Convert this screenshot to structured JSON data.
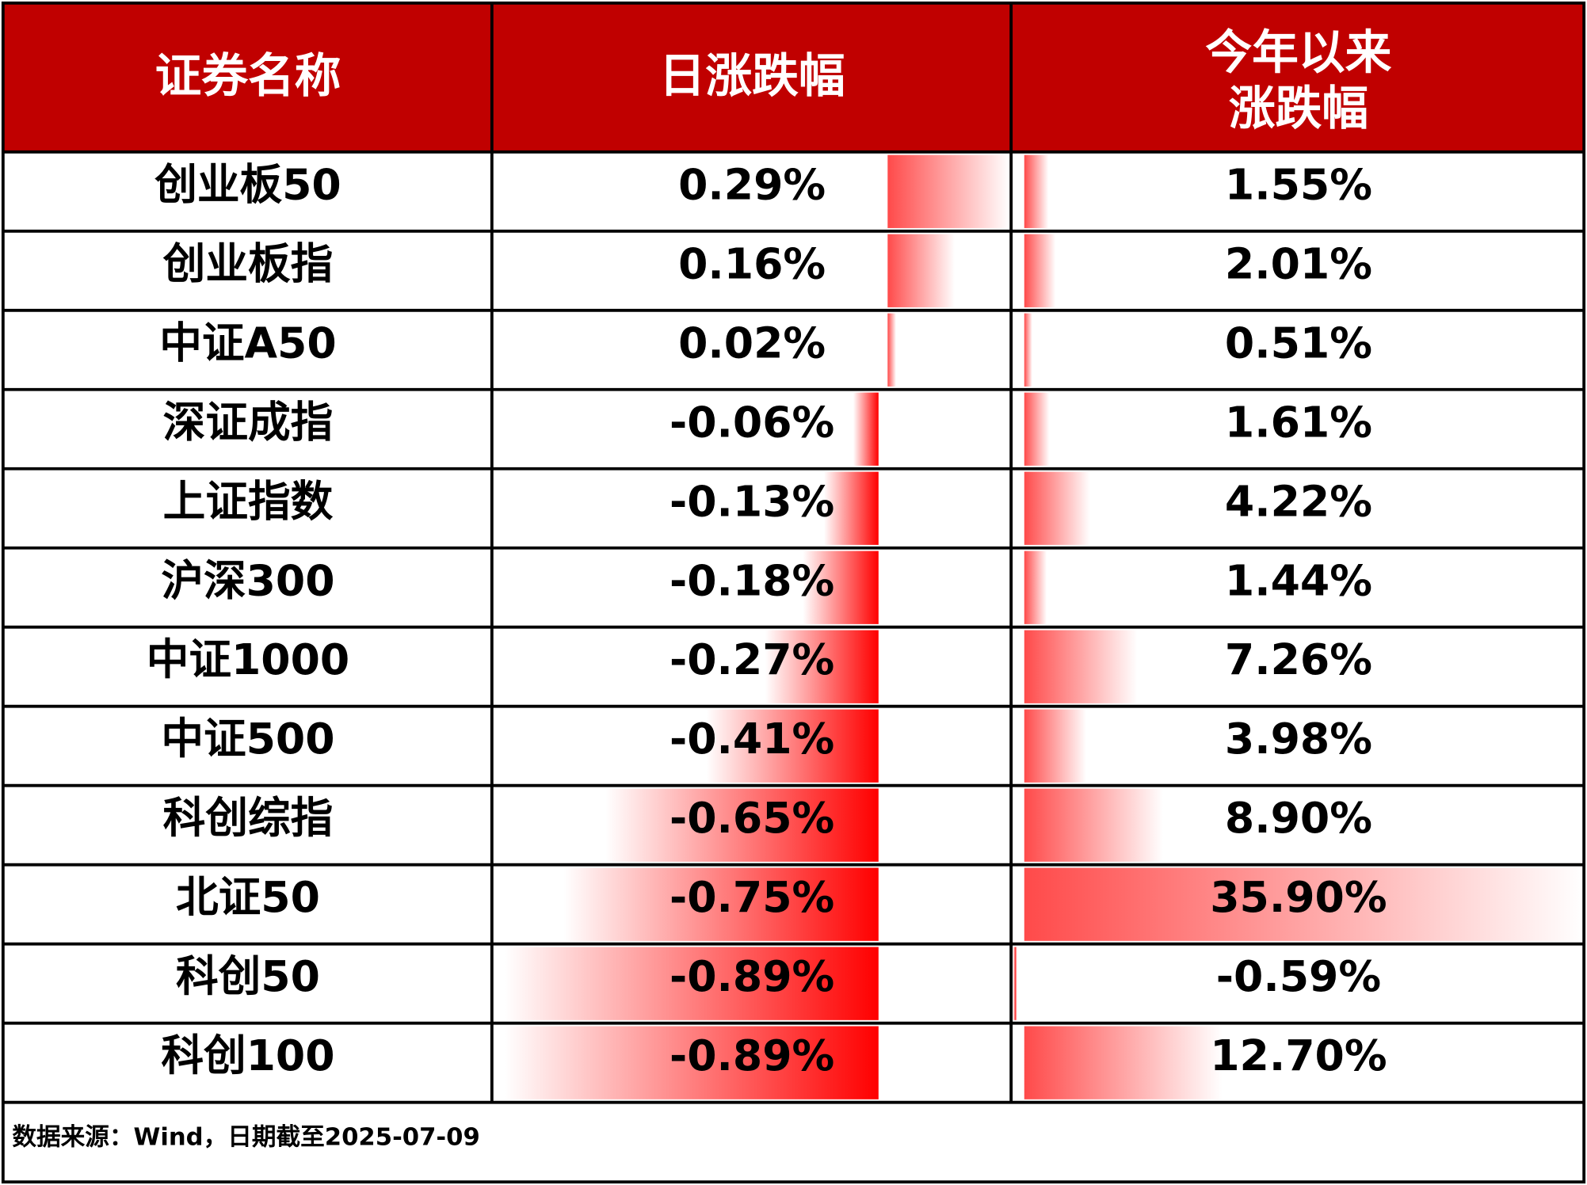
{
  "header": [
    "证券名称",
    "日涨跌幅",
    [
      "今年以来",
      "涨跌幅"
    ]
  ],
  "rows": [
    {
      "name": "创业板50",
      "daily": 0.29,
      "daily_label": "0.29%",
      "ytd": 1.55,
      "ytd_label": "1.55%"
    },
    {
      "name": "创业板指",
      "daily": 0.16,
      "daily_label": "0.16%",
      "ytd": 2.01,
      "ytd_label": "2.01%"
    },
    {
      "name": "中证A50",
      "daily": 0.02,
      "daily_label": "0.02%",
      "ytd": 0.51,
      "ytd_label": "0.51%"
    },
    {
      "name": "深证成指",
      "daily": -0.06,
      "daily_label": "-0.06%",
      "ytd": 1.61,
      "ytd_label": "1.61%"
    },
    {
      "name": "上证指数",
      "daily": -0.13,
      "daily_label": "-0.13%",
      "ytd": 4.22,
      "ytd_label": "4.22%"
    },
    {
      "name": "沪深300",
      "daily": -0.18,
      "daily_label": "-0.18%",
      "ytd": 1.44,
      "ytd_label": "1.44%"
    },
    {
      "name": "中证1000",
      "daily": -0.27,
      "daily_label": "-0.27%",
      "ytd": 7.26,
      "ytd_label": "7.26%"
    },
    {
      "name": "中证500",
      "daily": -0.41,
      "daily_label": "-0.41%",
      "ytd": 3.98,
      "ytd_label": "3.98%"
    },
    {
      "name": "科创综指",
      "daily": -0.65,
      "daily_label": "-0.65%",
      "ytd": 8.9,
      "ytd_label": "8.90%"
    },
    {
      "name": "北证50",
      "daily": -0.75,
      "daily_label": "-0.75%",
      "ytd": 35.9,
      "ytd_label": "35.90%"
    },
    {
      "name": "科创50",
      "daily": -0.89,
      "daily_label": "-0.89%",
      "ytd": -0.59,
      "ytd_label": "-0.59%"
    },
    {
      "name": "科创100",
      "daily": -0.89,
      "daily_label": "-0.89%",
      "ytd": 12.7,
      "ytd_label": "12.70%"
    }
  ],
  "footer": "数据来源：Wind，日期截至2025-07-09"
}
